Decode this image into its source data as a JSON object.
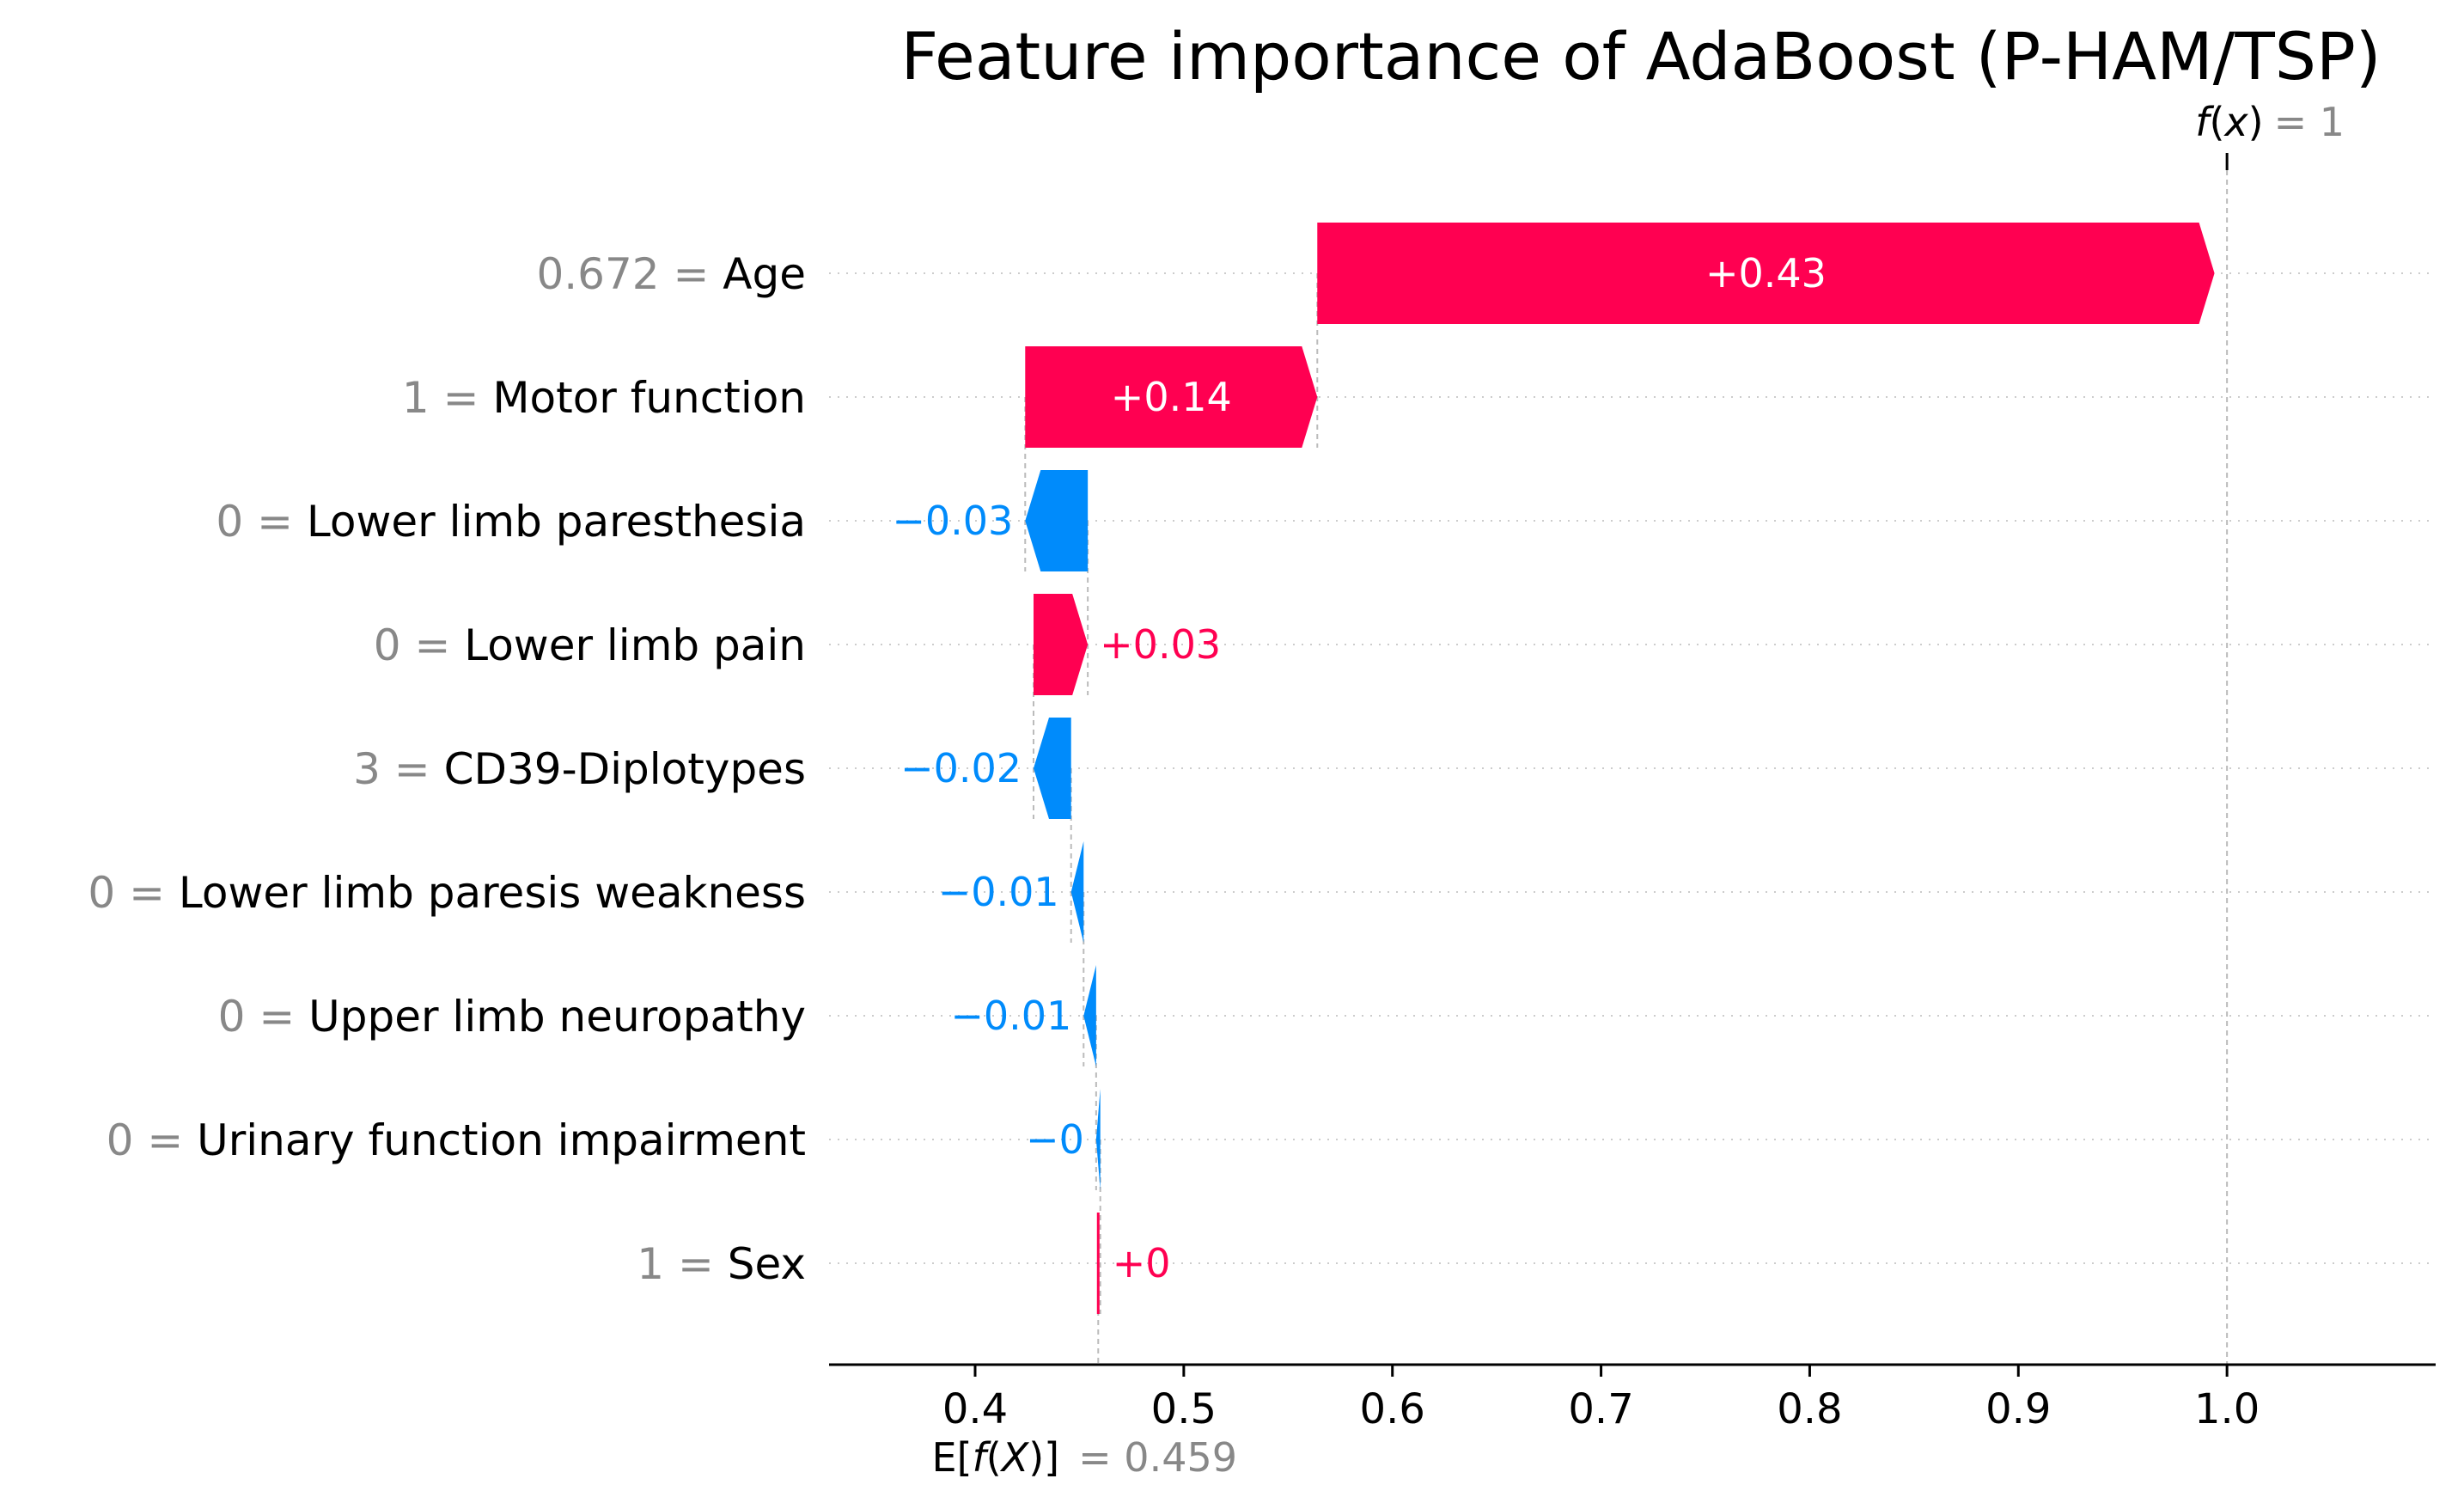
{
  "chart_data": {
    "type": "waterfall",
    "title": "Feature importance of AdaBoost (P-HAM/TSP)",
    "base_value": 0.459,
    "base_label_value": "0.459",
    "final_value": 1,
    "final_label_value": "1",
    "xlim": [
      0.33,
      1.1
    ],
    "x_ticks": [
      0.4,
      0.5,
      0.6,
      0.7,
      0.8,
      0.9,
      1.0
    ],
    "x_tick_labels": [
      "0.4",
      "0.5",
      "0.6",
      "0.7",
      "0.8",
      "0.9",
      "1.0"
    ],
    "features": [
      {
        "value": "0.672",
        "name": "Age",
        "contribution": 0.43,
        "label": "+0.43"
      },
      {
        "value": "1",
        "name": "Motor function",
        "contribution": 0.14,
        "label": "+0.14"
      },
      {
        "value": "0",
        "name": "Lower limb paresthesia",
        "contribution": -0.03,
        "label": "−0.03"
      },
      {
        "value": "0",
        "name": "Lower limb pain",
        "contribution": 0.026,
        "label": "+0.03"
      },
      {
        "value": "3",
        "name": "CD39-Diplotypes",
        "contribution": -0.018,
        "label": "−0.02"
      },
      {
        "value": "0",
        "name": "Lower limb paresis weakness",
        "contribution": -0.006,
        "label": "−0.01"
      },
      {
        "value": "0",
        "name": "Upper limb neuropathy",
        "contribution": -0.006,
        "label": "−0.01"
      },
      {
        "value": "0",
        "name": "Urinary function impairment",
        "contribution": -0.002,
        "label": "−0"
      },
      {
        "value": "1",
        "name": "Sex",
        "contribution": 0.001,
        "label": "+0"
      }
    ],
    "colors": {
      "positive": "#ff0051",
      "negative": "#008bfb",
      "muted": "#888888"
    }
  }
}
